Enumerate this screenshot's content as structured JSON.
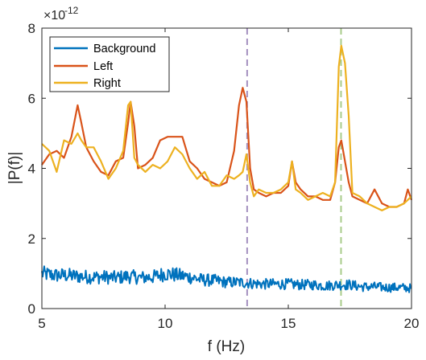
{
  "chart_data": {
    "type": "line",
    "title": "",
    "xlabel": "f (Hz)",
    "ylabel": "|P(f)|",
    "xlim": [
      5,
      20
    ],
    "ylim": [
      0,
      8
    ],
    "y_multiplier": {
      "base": "×10",
      "exponent": "-12"
    },
    "xticks": [
      5,
      10,
      15,
      20
    ],
    "xtick_labels": [
      "5",
      "10",
      "15",
      "20"
    ],
    "yticks": [
      0,
      2,
      4,
      6,
      8
    ],
    "ytick_labels": [
      "0",
      "2",
      "4",
      "6",
      "8"
    ],
    "grid": false,
    "legend_position": "top-left",
    "reference_lines": [
      {
        "x": 13.33,
        "color": "#a48fbf",
        "style": "dashed"
      },
      {
        "x": 17.14,
        "color": "#a9cc8a",
        "style": "dashed"
      }
    ],
    "series": [
      {
        "name": "Background",
        "color": "#0072bd",
        "x": [
          5.0,
          5.5,
          6.0,
          6.5,
          7.0,
          7.5,
          8.0,
          8.5,
          9.0,
          9.5,
          10.0,
          10.5,
          11.0,
          11.5,
          12.0,
          12.5,
          13.0,
          13.5,
          14.0,
          14.5,
          15.0,
          15.5,
          16.0,
          16.5,
          17.0,
          17.5,
          18.0,
          18.5,
          19.0,
          19.5,
          20.0
        ],
        "y": [
          1.0,
          0.95,
          0.95,
          0.92,
          0.9,
          0.9,
          0.88,
          0.92,
          0.88,
          0.9,
          1.0,
          0.95,
          0.9,
          0.82,
          0.8,
          0.75,
          0.75,
          0.72,
          0.7,
          0.7,
          0.7,
          0.68,
          0.68,
          0.65,
          0.68,
          0.68,
          0.62,
          0.62,
          0.6,
          0.6,
          0.58
        ]
      },
      {
        "name": "Left",
        "color": "#d95319",
        "x": [
          5.0,
          5.3,
          5.6,
          5.9,
          6.2,
          6.45,
          6.6,
          6.8,
          7.1,
          7.4,
          7.7,
          8.0,
          8.3,
          8.5,
          8.6,
          8.75,
          8.9,
          9.2,
          9.5,
          9.8,
          10.1,
          10.4,
          10.7,
          11.0,
          11.3,
          11.6,
          11.9,
          12.2,
          12.5,
          12.8,
          13.0,
          13.15,
          13.3,
          13.45,
          13.6,
          13.8,
          14.1,
          14.4,
          14.7,
          15.0,
          15.15,
          15.3,
          15.5,
          15.8,
          16.1,
          16.4,
          16.7,
          16.9,
          17.05,
          17.15,
          17.3,
          17.45,
          17.6,
          17.9,
          18.2,
          18.5,
          18.8,
          19.1,
          19.4,
          19.7,
          19.85,
          20.0
        ],
        "y": [
          4.1,
          4.4,
          4.5,
          4.3,
          4.9,
          5.8,
          5.3,
          4.6,
          4.2,
          3.9,
          3.8,
          4.2,
          4.3,
          5.3,
          5.9,
          5.2,
          4.0,
          4.1,
          4.3,
          4.8,
          4.9,
          4.9,
          4.9,
          4.2,
          4.0,
          3.7,
          3.6,
          3.5,
          3.6,
          4.5,
          5.8,
          6.3,
          5.9,
          4.0,
          3.4,
          3.3,
          3.2,
          3.3,
          3.3,
          3.5,
          4.2,
          3.6,
          3.4,
          3.2,
          3.2,
          3.1,
          3.1,
          3.6,
          4.6,
          4.8,
          4.2,
          3.6,
          3.2,
          3.1,
          3.0,
          3.4,
          3.0,
          2.9,
          2.9,
          3.0,
          3.4,
          3.1
        ]
      },
      {
        "name": "Right",
        "color": "#edb120",
        "x": [
          5.0,
          5.3,
          5.6,
          5.9,
          6.2,
          6.45,
          6.6,
          6.8,
          7.1,
          7.4,
          7.7,
          8.0,
          8.3,
          8.5,
          8.6,
          8.75,
          8.9,
          9.2,
          9.5,
          9.8,
          10.1,
          10.4,
          10.7,
          11.0,
          11.3,
          11.6,
          11.9,
          12.2,
          12.5,
          12.8,
          13.0,
          13.15,
          13.3,
          13.45,
          13.6,
          13.8,
          14.1,
          14.4,
          14.7,
          15.0,
          15.15,
          15.3,
          15.5,
          15.8,
          16.1,
          16.4,
          16.7,
          16.9,
          17.05,
          17.15,
          17.3,
          17.45,
          17.6,
          17.9,
          18.2,
          18.5,
          18.8,
          19.1,
          19.4,
          19.7,
          19.85,
          20.0
        ],
        "y": [
          4.7,
          4.5,
          3.9,
          4.8,
          4.7,
          5.0,
          4.8,
          4.6,
          4.6,
          4.2,
          3.7,
          4.0,
          4.5,
          5.8,
          5.9,
          4.3,
          4.1,
          3.9,
          4.1,
          4.0,
          4.2,
          4.6,
          4.4,
          4.0,
          3.7,
          3.9,
          3.5,
          3.5,
          3.8,
          3.7,
          3.8,
          3.9,
          4.4,
          3.6,
          3.2,
          3.4,
          3.3,
          3.3,
          3.4,
          3.6,
          4.2,
          3.4,
          3.3,
          3.1,
          3.2,
          3.3,
          3.2,
          3.6,
          6.9,
          7.5,
          7.0,
          5.5,
          3.3,
          3.2,
          3.0,
          2.9,
          2.8,
          2.9,
          2.9,
          3.0,
          3.1,
          3.2
        ]
      }
    ]
  }
}
